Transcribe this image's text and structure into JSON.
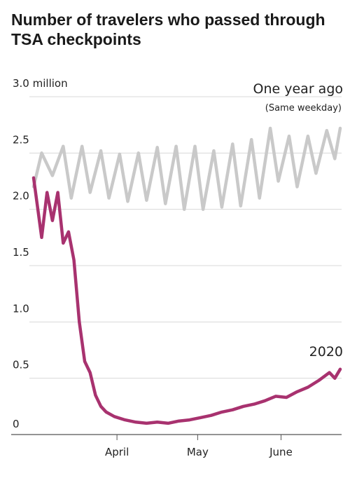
{
  "chart_data": {
    "type": "line",
    "title": "Number of travelers who passed through TSA checkpoints",
    "y_unit_label": "3.0 million",
    "ylim": [
      0,
      3.0
    ],
    "x_range": [
      "2020-03-01",
      "2020-06-23"
    ],
    "y_ticks": [
      {
        "value": 0,
        "label": "0"
      },
      {
        "value": 0.5,
        "label": "0.5"
      },
      {
        "value": 1.0,
        "label": "1.0"
      },
      {
        "value": 1.5,
        "label": "1.5"
      },
      {
        "value": 2.0,
        "label": "2.0"
      },
      {
        "value": 2.5,
        "label": "2.5"
      },
      {
        "value": 3.0,
        "label": "3.0 million"
      }
    ],
    "x_ticks": [
      {
        "date": "2020-04-01",
        "label": "April"
      },
      {
        "date": "2020-05-01",
        "label": "May"
      },
      {
        "date": "2020-06-01",
        "label": "June"
      }
    ],
    "grid": true,
    "series": [
      {
        "name": "One year ago",
        "note": "(Same weekday)",
        "color": "#c9c9c9",
        "x": [
          "2020-03-01",
          "2020-03-04",
          "2020-03-08",
          "2020-03-12",
          "2020-03-15",
          "2020-03-19",
          "2020-03-22",
          "2020-03-26",
          "2020-03-29",
          "2020-04-02",
          "2020-04-05",
          "2020-04-09",
          "2020-04-12",
          "2020-04-16",
          "2020-04-19",
          "2020-04-23",
          "2020-04-26",
          "2020-04-30",
          "2020-05-03",
          "2020-05-07",
          "2020-05-10",
          "2020-05-14",
          "2020-05-17",
          "2020-05-21",
          "2020-05-24",
          "2020-05-28",
          "2020-05-31",
          "2020-06-04",
          "2020-06-07",
          "2020-06-11",
          "2020-06-14",
          "2020-06-18",
          "2020-06-21",
          "2020-06-23"
        ],
        "y": [
          2.2,
          2.5,
          2.3,
          2.56,
          2.1,
          2.56,
          2.15,
          2.52,
          2.1,
          2.49,
          2.07,
          2.5,
          2.08,
          2.55,
          2.05,
          2.56,
          2.0,
          2.56,
          2.0,
          2.52,
          2.02,
          2.58,
          2.03,
          2.62,
          2.1,
          2.72,
          2.25,
          2.65,
          2.2,
          2.65,
          2.32,
          2.7,
          2.45,
          2.72
        ]
      },
      {
        "name": "2020",
        "color": "#a8326f",
        "x": [
          "2020-03-01",
          "2020-03-04",
          "2020-03-06",
          "2020-03-08",
          "2020-03-10",
          "2020-03-12",
          "2020-03-14",
          "2020-03-16",
          "2020-03-18",
          "2020-03-20",
          "2020-03-22",
          "2020-03-24",
          "2020-03-26",
          "2020-03-28",
          "2020-03-31",
          "2020-04-04",
          "2020-04-08",
          "2020-04-12",
          "2020-04-16",
          "2020-04-20",
          "2020-04-24",
          "2020-04-28",
          "2020-05-02",
          "2020-05-06",
          "2020-05-10",
          "2020-05-14",
          "2020-05-18",
          "2020-05-22",
          "2020-05-26",
          "2020-05-30",
          "2020-06-03",
          "2020-06-07",
          "2020-06-11",
          "2020-06-15",
          "2020-06-19",
          "2020-06-21",
          "2020-06-23"
        ],
        "y": [
          2.28,
          1.75,
          2.15,
          1.9,
          2.15,
          1.7,
          1.8,
          1.55,
          1.0,
          0.65,
          0.55,
          0.35,
          0.25,
          0.2,
          0.16,
          0.13,
          0.11,
          0.1,
          0.11,
          0.1,
          0.12,
          0.13,
          0.15,
          0.17,
          0.2,
          0.22,
          0.25,
          0.27,
          0.3,
          0.34,
          0.33,
          0.38,
          0.42,
          0.48,
          0.55,
          0.5,
          0.58
        ]
      }
    ]
  }
}
